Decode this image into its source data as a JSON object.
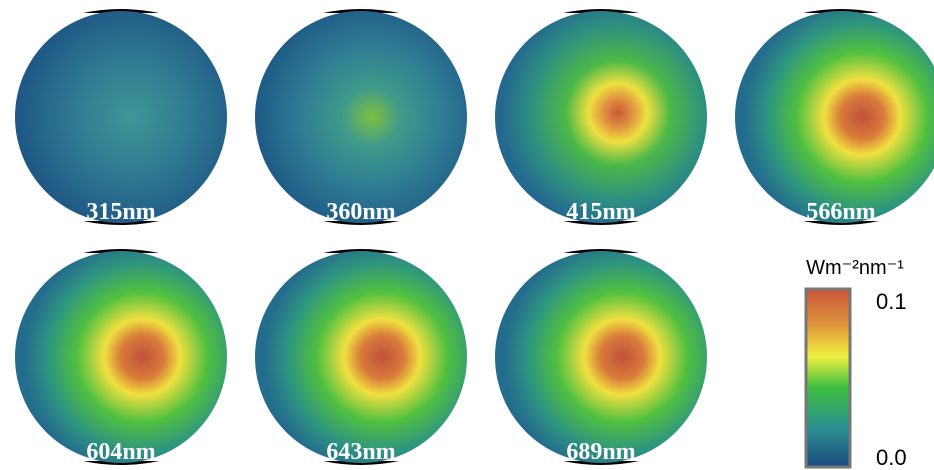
{
  "panels": [
    {
      "label": "315nm"
    },
    {
      "label": "360nm"
    },
    {
      "label": "415nm"
    },
    {
      "label": "566nm"
    },
    {
      "label": "604nm"
    },
    {
      "label": "643nm"
    },
    {
      "label": "689nm"
    }
  ],
  "colorbar": {
    "unit": "Wm⁻²nm⁻¹",
    "ticks": [
      "0.1",
      "0.0"
    ]
  }
}
